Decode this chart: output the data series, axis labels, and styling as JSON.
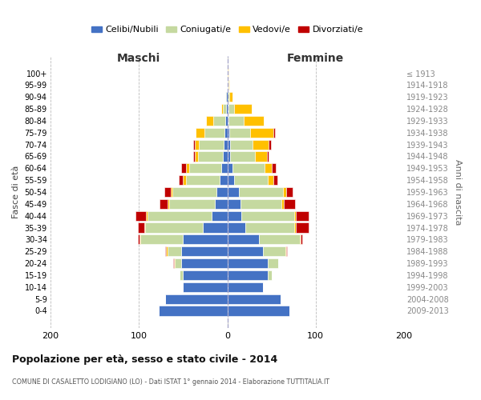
{
  "age_groups": [
    "100+",
    "95-99",
    "90-94",
    "85-89",
    "80-84",
    "75-79",
    "70-74",
    "65-69",
    "60-64",
    "55-59",
    "50-54",
    "45-49",
    "40-44",
    "35-39",
    "30-34",
    "25-29",
    "20-24",
    "15-19",
    "10-14",
    "5-9",
    "0-4"
  ],
  "birth_years": [
    "≤ 1913",
    "1914-1918",
    "1919-1923",
    "1924-1928",
    "1929-1933",
    "1934-1938",
    "1939-1943",
    "1944-1948",
    "1949-1953",
    "1954-1958",
    "1959-1963",
    "1964-1968",
    "1969-1973",
    "1974-1978",
    "1979-1983",
    "1984-1988",
    "1989-1993",
    "1994-1998",
    "1999-2003",
    "2004-2008",
    "2009-2013"
  ],
  "colors": {
    "celibi": "#4472c4",
    "coniugati": "#c5d9a0",
    "vedovi": "#ffc000",
    "divorziati": "#c00000"
  },
  "maschi": {
    "celibi": [
      0,
      0,
      1,
      1,
      2,
      3,
      4,
      5,
      7,
      9,
      12,
      14,
      18,
      28,
      50,
      52,
      52,
      50,
      50,
      70,
      78
    ],
    "coniugati": [
      0,
      0,
      1,
      4,
      14,
      23,
      28,
      28,
      36,
      38,
      50,
      52,
      72,
      65,
      48,
      16,
      7,
      4,
      0,
      0,
      0
    ],
    "vedovi": [
      0,
      0,
      0,
      2,
      8,
      10,
      5,
      4,
      4,
      3,
      2,
      2,
      2,
      1,
      1,
      1,
      1,
      0,
      0,
      0,
      0
    ],
    "divorziati": [
      0,
      0,
      0,
      0,
      0,
      0,
      2,
      2,
      5,
      5,
      7,
      9,
      12,
      7,
      2,
      1,
      1,
      0,
      0,
      0,
      0
    ]
  },
  "femmine": {
    "celibi": [
      0,
      0,
      0,
      1,
      1,
      2,
      3,
      3,
      6,
      8,
      13,
      15,
      16,
      20,
      36,
      40,
      46,
      46,
      40,
      60,
      70
    ],
    "coniugati": [
      0,
      1,
      2,
      7,
      18,
      24,
      26,
      28,
      36,
      38,
      50,
      46,
      60,
      56,
      46,
      26,
      12,
      4,
      0,
      0,
      0
    ],
    "vedovi": [
      1,
      1,
      4,
      20,
      22,
      26,
      18,
      14,
      8,
      6,
      4,
      3,
      2,
      2,
      1,
      1,
      0,
      0,
      0,
      0,
      0
    ],
    "divorziati": [
      0,
      0,
      0,
      0,
      0,
      2,
      2,
      2,
      5,
      5,
      7,
      13,
      14,
      14,
      2,
      1,
      0,
      0,
      0,
      0,
      0
    ]
  },
  "title_main": "Popolazione per età, sesso e stato civile - 2014",
  "title_sub": "COMUNE DI CASALETTO LODIGIANO (LO) - Dati ISTAT 1° gennaio 2014 - Elaborazione TUTTITALIA.IT",
  "header_left": "Maschi",
  "header_right": "Femmine",
  "ylabel_left": "Fasce di età",
  "ylabel_right": "Anni di nascita",
  "xlim": 200,
  "bg_color": "#ffffff",
  "grid_color": "#bbbbbb",
  "legend_labels": [
    "Celibi/Nubili",
    "Coniugati/e",
    "Vedovi/e",
    "Divorziati/e"
  ]
}
